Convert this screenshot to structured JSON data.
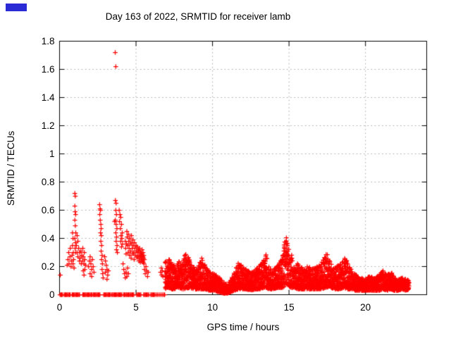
{
  "artifacts": {
    "blue_mark_color": "#2b2bd5"
  },
  "chart_data": {
    "type": "scatter",
    "title": "Day 163 of 2022, SRMTID for receiver lamb",
    "xlabel": "GPS time / hours",
    "ylabel": "SRMTID / TECUs",
    "xlim": [
      0,
      24
    ],
    "ylim": [
      0,
      1.8
    ],
    "xticks": [
      0,
      5,
      10,
      15,
      20
    ],
    "yticks": [
      0,
      0.2,
      0.4,
      0.6,
      0.8,
      1.0,
      1.2,
      1.4,
      1.6,
      1.8
    ],
    "xtick_labels": [
      "0",
      "5",
      "10",
      "15",
      "20"
    ],
    "ytick_labels": [
      "0",
      "0.2",
      "0.4",
      "0.6",
      "0.8",
      "1",
      "1.2",
      "1.4",
      "1.6",
      "1.8"
    ],
    "grid": "dotted",
    "legend": "none",
    "marker": "plus-cross",
    "colors": {
      "marker": "#ff0000",
      "grid": "#a8a8a8",
      "axis": "#000000",
      "background": "#ffffff"
    },
    "outliers": [
      [
        3.64,
        1.72
      ],
      [
        3.68,
        1.62
      ]
    ],
    "points": [
      [
        0.05,
        0.14
      ],
      [
        0.5,
        0.21
      ],
      [
        0.55,
        0.25
      ],
      [
        0.6,
        0.3
      ],
      [
        0.62,
        0.22
      ],
      [
        0.68,
        0.27
      ],
      [
        0.7,
        0.33
      ],
      [
        0.75,
        0.2
      ],
      [
        0.78,
        0.24
      ],
      [
        0.82,
        0.28
      ],
      [
        0.85,
        0.35
      ],
      [
        0.88,
        0.22
      ],
      [
        0.9,
        0.3
      ],
      [
        0.92,
        0.25
      ],
      [
        0.95,
        0.19
      ],
      [
        0.85,
        0.44
      ],
      [
        0.88,
        0.4
      ],
      [
        1.0,
        0.72
      ],
      [
        1.03,
        0.7
      ],
      [
        1.0,
        0.63
      ],
      [
        1.02,
        0.59
      ],
      [
        1.05,
        0.57
      ],
      [
        1.0,
        0.53
      ],
      [
        1.03,
        0.49
      ],
      [
        1.06,
        0.44
      ],
      [
        1.0,
        0.4
      ],
      [
        1.04,
        0.37
      ],
      [
        1.02,
        0.33
      ],
      [
        1.05,
        0.3
      ],
      [
        1.1,
        0.35
      ],
      [
        1.15,
        0.3
      ],
      [
        1.2,
        0.27
      ],
      [
        1.25,
        0.33
      ],
      [
        1.3,
        0.24
      ],
      [
        1.32,
        0.3
      ],
      [
        1.35,
        0.26
      ],
      [
        1.4,
        0.31
      ],
      [
        1.42,
        0.22
      ],
      [
        1.45,
        0.28
      ],
      [
        1.5,
        0.24
      ],
      [
        1.52,
        0.33
      ],
      [
        1.55,
        0.27
      ],
      [
        1.6,
        0.22
      ],
      [
        1.62,
        0.3
      ],
      [
        1.65,
        0.25
      ],
      [
        1.55,
        0.17
      ],
      [
        1.6,
        0.14
      ],
      [
        1.65,
        0.18
      ],
      [
        1.7,
        0.21
      ],
      [
        1.15,
        0.42
      ],
      [
        1.2,
        0.38
      ],
      [
        1.9,
        0.2
      ],
      [
        1.95,
        0.24
      ],
      [
        2.0,
        0.27
      ],
      [
        2.05,
        0.22
      ],
      [
        2.1,
        0.18
      ],
      [
        2.15,
        0.25
      ],
      [
        2.2,
        0.2
      ],
      [
        2.25,
        0.16
      ],
      [
        2.0,
        0.15
      ],
      [
        2.1,
        0.13
      ],
      [
        2.62,
        0.64
      ],
      [
        2.65,
        0.61
      ],
      [
        2.68,
        0.6
      ],
      [
        2.63,
        0.57
      ],
      [
        2.66,
        0.53
      ],
      [
        2.7,
        0.5
      ],
      [
        2.72,
        0.47
      ],
      [
        2.68,
        0.44
      ],
      [
        2.73,
        0.42
      ],
      [
        2.7,
        0.38
      ],
      [
        2.75,
        0.35
      ],
      [
        2.72,
        0.31
      ],
      [
        2.78,
        0.28
      ],
      [
        2.75,
        0.25
      ],
      [
        2.8,
        0.22
      ],
      [
        2.78,
        0.18
      ],
      [
        2.82,
        0.15
      ],
      [
        2.85,
        0.12
      ],
      [
        2.95,
        0.27
      ],
      [
        3.0,
        0.24
      ],
      [
        3.05,
        0.21
      ],
      [
        3.1,
        0.18
      ],
      [
        3.0,
        0.16
      ],
      [
        3.15,
        0.14
      ],
      [
        3.1,
        0.11
      ],
      [
        3.2,
        0.17
      ],
      [
        3.64,
        1.72
      ],
      [
        3.68,
        1.62
      ],
      [
        3.6,
        0.52
      ],
      [
        3.65,
        0.67
      ],
      [
        3.7,
        0.65
      ],
      [
        3.68,
        0.6
      ],
      [
        3.72,
        0.57
      ],
      [
        3.65,
        0.53
      ],
      [
        3.7,
        0.5
      ],
      [
        3.75,
        0.47
      ],
      [
        3.68,
        0.44
      ],
      [
        3.73,
        0.41
      ],
      [
        3.7,
        0.38
      ],
      [
        3.76,
        0.35
      ],
      [
        3.72,
        0.32
      ],
      [
        3.78,
        0.3
      ],
      [
        3.9,
        0.6
      ],
      [
        3.95,
        0.57
      ],
      [
        4.0,
        0.55
      ],
      [
        3.92,
        0.52
      ],
      [
        4.05,
        0.5
      ],
      [
        3.98,
        0.47
      ],
      [
        4.1,
        0.44
      ],
      [
        4.02,
        0.42
      ],
      [
        4.08,
        0.4
      ],
      [
        4.0,
        0.38
      ],
      [
        4.12,
        0.36
      ],
      [
        4.05,
        0.34
      ],
      [
        4.15,
        0.22
      ],
      [
        4.2,
        0.18
      ],
      [
        4.25,
        0.15
      ],
      [
        4.3,
        0.12
      ],
      [
        4.35,
        0.16
      ],
      [
        4.4,
        0.13
      ],
      [
        4.45,
        0.19
      ],
      [
        4.5,
        0.15
      ],
      [
        4.3,
        0.38
      ],
      [
        4.32,
        0.33
      ],
      [
        4.35,
        0.29
      ],
      [
        4.38,
        0.36
      ],
      [
        4.4,
        0.45
      ],
      [
        4.42,
        0.41
      ],
      [
        4.45,
        0.35
      ],
      [
        4.48,
        0.3
      ],
      [
        4.5,
        0.43
      ],
      [
        4.52,
        0.38
      ],
      [
        4.55,
        0.33
      ],
      [
        4.58,
        0.28
      ],
      [
        4.6,
        0.4
      ],
      [
        4.62,
        0.36
      ],
      [
        4.65,
        0.31
      ],
      [
        4.68,
        0.26
      ],
      [
        4.7,
        0.42
      ],
      [
        4.72,
        0.37
      ],
      [
        4.75,
        0.33
      ],
      [
        4.78,
        0.29
      ],
      [
        4.8,
        0.39
      ],
      [
        4.82,
        0.35
      ],
      [
        4.85,
        0.3
      ],
      [
        4.88,
        0.25
      ],
      [
        4.9,
        0.37
      ],
      [
        4.92,
        0.33
      ],
      [
        4.95,
        0.28
      ],
      [
        5.0,
        0.35
      ],
      [
        5.02,
        0.31
      ],
      [
        5.05,
        0.27
      ],
      [
        5.08,
        0.34
      ],
      [
        5.1,
        0.3
      ],
      [
        5.12,
        0.26
      ],
      [
        5.15,
        0.32
      ],
      [
        5.18,
        0.28
      ],
      [
        5.2,
        0.24
      ],
      [
        5.22,
        0.31
      ],
      [
        5.25,
        0.27
      ],
      [
        5.28,
        0.23
      ],
      [
        5.3,
        0.3
      ],
      [
        5.32,
        0.26
      ],
      [
        5.35,
        0.29
      ],
      [
        5.38,
        0.25
      ],
      [
        5.4,
        0.28
      ],
      [
        5.42,
        0.24
      ],
      [
        5.45,
        0.27
      ],
      [
        5.48,
        0.23
      ],
      [
        5.5,
        0.26
      ],
      [
        5.52,
        0.22
      ],
      [
        5.55,
        0.25
      ],
      [
        5.33,
        0.28
      ],
      [
        5.36,
        0.24
      ],
      [
        5.46,
        0.3
      ],
      [
        5.51,
        0.28
      ],
      [
        5.24,
        0.33
      ],
      [
        5.4,
        0.32
      ],
      [
        5.55,
        0.18
      ],
      [
        5.6,
        0.15
      ],
      [
        5.65,
        0.2
      ],
      [
        5.7,
        0.17
      ],
      [
        5.75,
        0.13
      ],
      [
        5.8,
        0.16
      ],
      [
        6.6,
        0.16
      ],
      [
        6.65,
        0.19
      ],
      [
        6.68,
        0.14
      ],
      [
        6.72,
        0.17
      ],
      [
        6.75,
        0.13
      ]
    ],
    "baseline_y": 0,
    "baseline_segments": [
      [
        0.03,
        0.2
      ],
      [
        0.31,
        0.74
      ],
      [
        0.82,
        1.35
      ],
      [
        1.51,
        2.12
      ],
      [
        2.2,
        2.66
      ],
      [
        2.89,
        3.35
      ],
      [
        3.42,
        4.11
      ],
      [
        4.19,
        4.88
      ],
      [
        5.04,
        5.34
      ],
      [
        5.5,
        5.88
      ],
      [
        5.96,
        6.28
      ],
      [
        6.33,
        6.36
      ],
      [
        6.42,
        6.45
      ],
      [
        6.52,
        6.56
      ],
      [
        6.62,
        6.66
      ],
      [
        6.72,
        6.75
      ],
      [
        6.82,
        6.92
      ]
    ],
    "band_envelope_x_ymin_ymax": [
      [
        6.9,
        0.04,
        0.23
      ],
      [
        7.1,
        0.05,
        0.26
      ],
      [
        7.35,
        0.04,
        0.22
      ],
      [
        7.6,
        0.04,
        0.2
      ],
      [
        7.8,
        0.05,
        0.24
      ],
      [
        8.0,
        0.04,
        0.22
      ],
      [
        8.25,
        0.04,
        0.3
      ],
      [
        8.5,
        0.05,
        0.26
      ],
      [
        8.75,
        0.04,
        0.2
      ],
      [
        9.0,
        0.04,
        0.18
      ],
      [
        9.3,
        0.04,
        0.27
      ],
      [
        9.55,
        0.04,
        0.2
      ],
      [
        9.8,
        0.03,
        0.16
      ],
      [
        10.1,
        0.03,
        0.15
      ],
      [
        10.4,
        0.02,
        0.13
      ],
      [
        10.7,
        0.01,
        0.09
      ],
      [
        11.0,
        0.01,
        0.07
      ],
      [
        11.2,
        0.02,
        0.11
      ],
      [
        11.45,
        0.03,
        0.16
      ],
      [
        11.7,
        0.04,
        0.24
      ],
      [
        11.95,
        0.04,
        0.2
      ],
      [
        12.2,
        0.04,
        0.18
      ],
      [
        12.5,
        0.03,
        0.16
      ],
      [
        12.8,
        0.04,
        0.18
      ],
      [
        13.1,
        0.04,
        0.21
      ],
      [
        13.35,
        0.05,
        0.25
      ],
      [
        13.5,
        0.05,
        0.31
      ],
      [
        13.65,
        0.04,
        0.2
      ],
      [
        13.95,
        0.04,
        0.18
      ],
      [
        14.25,
        0.05,
        0.21
      ],
      [
        14.55,
        0.05,
        0.26
      ],
      [
        14.75,
        0.06,
        0.42
      ],
      [
        14.87,
        0.08,
        0.56
      ],
      [
        15.0,
        0.06,
        0.38
      ],
      [
        15.15,
        0.05,
        0.29
      ],
      [
        15.35,
        0.05,
        0.22
      ],
      [
        15.6,
        0.04,
        0.22
      ],
      [
        15.9,
        0.04,
        0.19
      ],
      [
        16.2,
        0.04,
        0.21
      ],
      [
        16.5,
        0.04,
        0.18
      ],
      [
        16.8,
        0.04,
        0.2
      ],
      [
        17.1,
        0.04,
        0.22
      ],
      [
        17.45,
        0.05,
        0.3
      ],
      [
        17.7,
        0.05,
        0.24
      ],
      [
        18.0,
        0.04,
        0.19
      ],
      [
        18.3,
        0.04,
        0.22
      ],
      [
        18.6,
        0.05,
        0.27
      ],
      [
        18.85,
        0.04,
        0.23
      ],
      [
        19.1,
        0.04,
        0.17
      ],
      [
        19.4,
        0.03,
        0.14
      ],
      [
        19.7,
        0.03,
        0.12
      ],
      [
        20.0,
        0.03,
        0.12
      ],
      [
        20.3,
        0.03,
        0.13
      ],
      [
        20.6,
        0.03,
        0.12
      ],
      [
        20.9,
        0.03,
        0.14
      ],
      [
        21.15,
        0.04,
        0.18
      ],
      [
        21.4,
        0.03,
        0.14
      ],
      [
        21.65,
        0.04,
        0.17
      ],
      [
        21.9,
        0.03,
        0.12
      ],
      [
        22.15,
        0.03,
        0.11
      ],
      [
        22.4,
        0.04,
        0.12
      ],
      [
        22.65,
        0.03,
        0.11
      ],
      [
        22.85,
        0.04,
        0.1
      ]
    ]
  }
}
